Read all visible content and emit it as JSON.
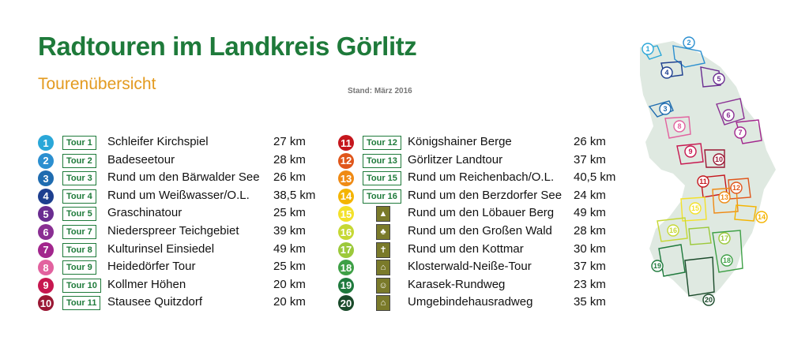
{
  "title": "Radtouren im Landkreis Görlitz",
  "subtitle": "Tourenübersicht",
  "stand": "Stand: März 2016",
  "tours_left": [
    {
      "num": "1",
      "tag": "Tour 1",
      "name": "Schleifer Kirchspiel",
      "dist": "27 km",
      "color": "#2aa7d8"
    },
    {
      "num": "2",
      "tag": "Tour 2",
      "name": "Badeseetour",
      "dist": "28 km",
      "color": "#2b8fd0"
    },
    {
      "num": "3",
      "tag": "Tour 3",
      "name": "Rund um den Bärwalder See",
      "dist": "26 km",
      "color": "#1f6cb0"
    },
    {
      "num": "4",
      "tag": "Tour 4",
      "name": "Rund um Weißwasser/O.L.",
      "dist": "38,5 km",
      "color": "#1d3f8f"
    },
    {
      "num": "5",
      "tag": "Tour 5",
      "name": "Graschinatour",
      "dist": "25 km",
      "color": "#6a2d91"
    },
    {
      "num": "6",
      "tag": "Tour 7",
      "name": "Niederspreer Teichgebiet",
      "dist": "39 km",
      "color": "#8a2f93"
    },
    {
      "num": "7",
      "tag": "Tour 8",
      "name": "Kulturinsel Einsiedel",
      "dist": "49 km",
      "color": "#a2268d"
    },
    {
      "num": "8",
      "tag": "Tour 9",
      "name": "Heidedörfer Tour",
      "dist": "25 km",
      "color": "#e2629f"
    },
    {
      "num": "9",
      "tag": "Tour 10",
      "name": "Kollmer Höhen",
      "dist": "20 km",
      "color": "#c7174f"
    },
    {
      "num": "10",
      "tag": "Tour 11",
      "name": "Stausee Quitzdorf",
      "dist": "20 km",
      "color": "#9a1733"
    }
  ],
  "tours_right": [
    {
      "num": "11",
      "tag": "Tour 12",
      "name": "Königshainer Berge",
      "dist": "26 km",
      "color": "#c5161d"
    },
    {
      "num": "12",
      "tag": "Tour 13",
      "name": "Görlitzer Landtour",
      "dist": "37 km",
      "color": "#e0561b"
    },
    {
      "num": "13",
      "tag": "Tour 15",
      "name": "Rund um Reichenbach/O.L.",
      "dist": "40,5 km",
      "color": "#ef8a14"
    },
    {
      "num": "14",
      "tag": "Tour 16",
      "name": "Rund um den Berzdorfer See",
      "dist": "24 km",
      "color": "#f4b400"
    },
    {
      "num": "15",
      "tag": "",
      "name": "Rund um den Löbauer Berg",
      "dist": "49 km",
      "color": "#f3e12a",
      "icon": "tower-symbol-icon"
    },
    {
      "num": "16",
      "tag": "",
      "name": "Rund um den Großen Wald",
      "dist": "28 km",
      "color": "#c6d834",
      "icon": "tree-symbol-icon"
    },
    {
      "num": "17",
      "tag": "",
      "name": "Rund um den Kottmar",
      "dist": "30 km",
      "color": "#9cc93b",
      "icon": "church-symbol-icon"
    },
    {
      "num": "18",
      "tag": "",
      "name": "Klosterwald-Neiße-Tour",
      "dist": "37 km",
      "color": "#3ea046",
      "icon": "monastery-symbol-icon"
    },
    {
      "num": "19",
      "tag": "",
      "name": "Karasek-Rundweg",
      "dist": "23 km",
      "color": "#1f7a3d",
      "icon": "figure-symbol-icon"
    },
    {
      "num": "20",
      "tag": "",
      "name": "Umgebindehausradweg",
      "dist": "35 km",
      "color": "#1a4a2a",
      "icon": "house-symbol-icon"
    }
  ],
  "map": {
    "region_color": "#dfe9e1"
  }
}
